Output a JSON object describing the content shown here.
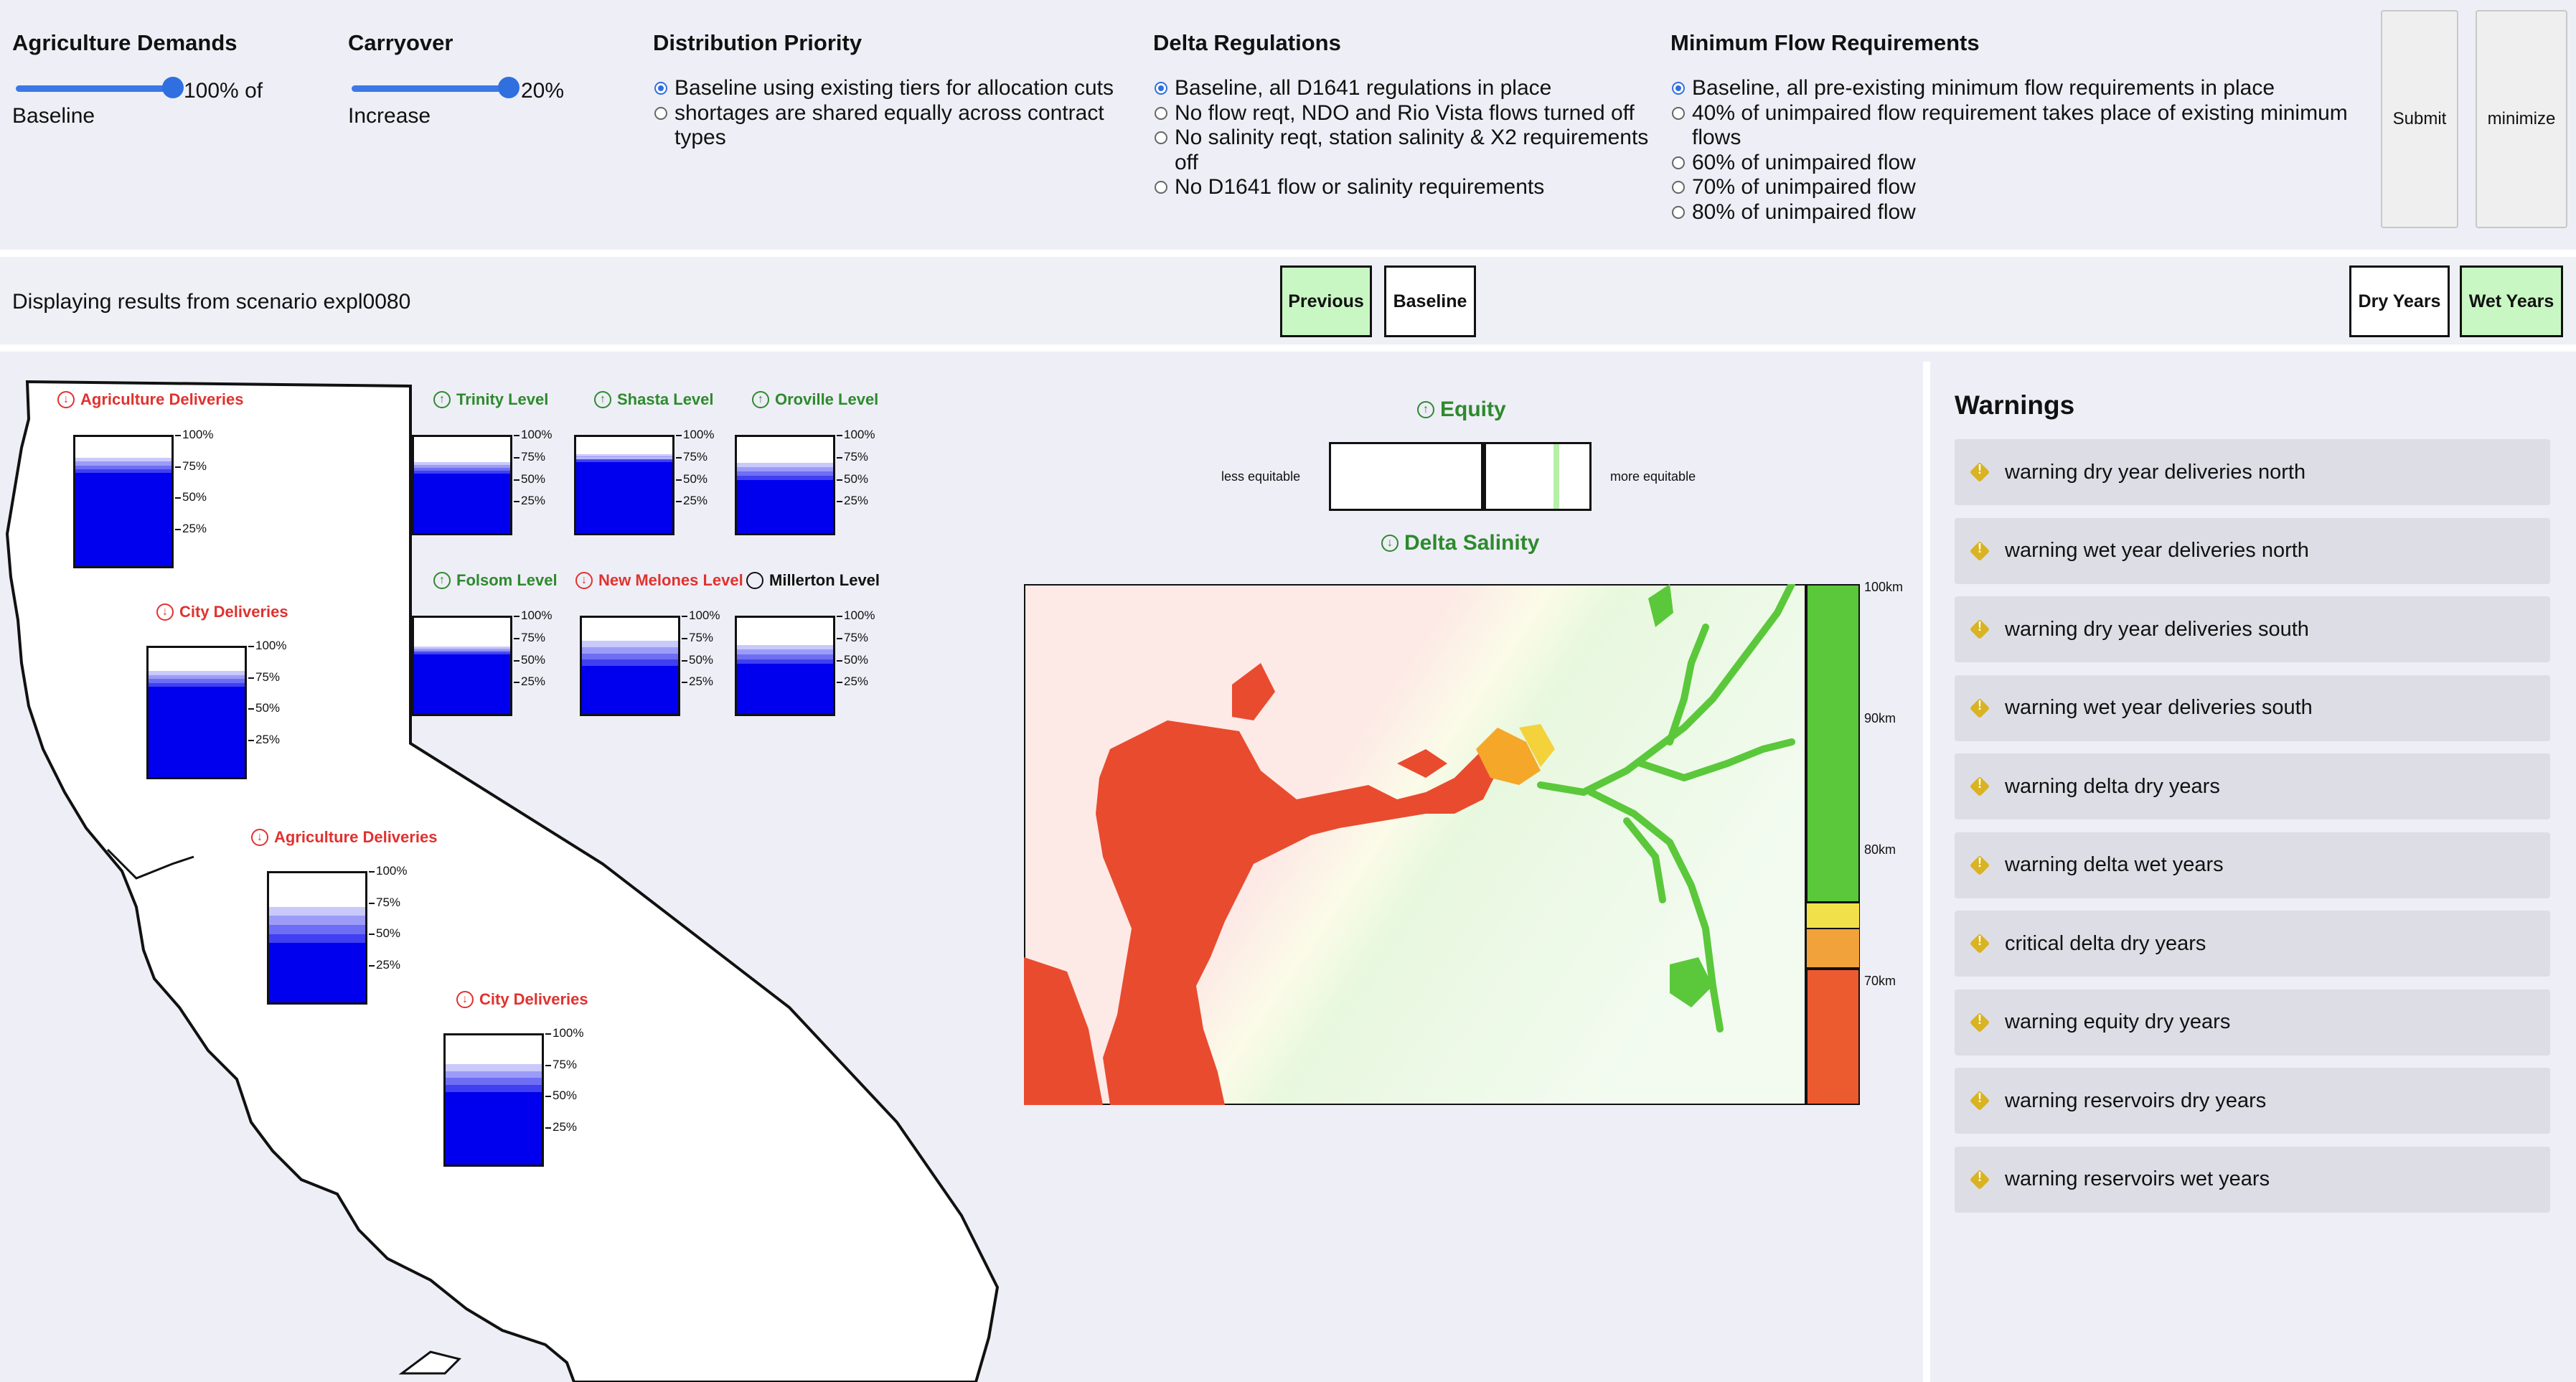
{
  "controls": {
    "agriculture": {
      "title": "Agriculture Demands",
      "value_label": "100% of",
      "sub_label": "Baseline",
      "level": 1.0
    },
    "carryover": {
      "title": "Carryover",
      "value_label": "20%",
      "sub_label": "Increase",
      "level": 1.0
    },
    "distribution": {
      "title": "Distribution Priority",
      "options": [
        {
          "label": "Baseline using existing tiers for allocation cuts",
          "selected": true
        },
        {
          "label": "shortages are shared equally across contract types",
          "selected": false
        }
      ]
    },
    "delta": {
      "title": "Delta Regulations",
      "options": [
        {
          "label": "Baseline, all D1641 regulations in place",
          "selected": true
        },
        {
          "label": "No flow reqt, NDO and Rio Vista flows turned off",
          "selected": false
        },
        {
          "label": "No salinity reqt, station salinity & X2 requirements off",
          "selected": false
        },
        {
          "label": "No D1641 flow or salinity requirements",
          "selected": false
        }
      ]
    },
    "minflow": {
      "title": "Minimum Flow Requirements",
      "options": [
        {
          "label": "Baseline, all pre-existing minimum flow requirements in place",
          "selected": true
        },
        {
          "label": "40% of unimpaired flow requirement takes place of existing minimum flows",
          "selected": false
        },
        {
          "label": "60% of unimpaired flow",
          "selected": false
        },
        {
          "label": "70% of unimpaired flow",
          "selected": false
        },
        {
          "label": "80% of unimpaired flow",
          "selected": false
        }
      ]
    },
    "submit_label": "Submit",
    "minimize_label": "minimize"
  },
  "scenario": {
    "text": "Displaying results from scenario expl0080",
    "previous_label": "Previous",
    "baseline_label": "Baseline",
    "dry_label": "Dry Years",
    "wet_label": "Wet Years"
  },
  "ticks": [
    "100%",
    "75%",
    "50%",
    "25%"
  ],
  "gauges": [
    {
      "title": "Agriculture Deliveries",
      "tone": "red",
      "arrow": "down",
      "fill": 0.72,
      "band": 0.12
    },
    {
      "title": "City Deliveries",
      "tone": "red",
      "arrow": "down",
      "fill": 0.7,
      "band": 0.12
    },
    {
      "title": "Agriculture Deliveries",
      "tone": "red",
      "arrow": "down",
      "fill": 0.46,
      "band": 0.28
    },
    {
      "title": "City Deliveries",
      "tone": "red",
      "arrow": "down",
      "fill": 0.56,
      "band": 0.22
    },
    {
      "title": "Trinity Level",
      "tone": "green",
      "arrow": "up",
      "fill": 0.62,
      "band": 0.12
    },
    {
      "title": "Shasta Level",
      "tone": "green",
      "arrow": "up",
      "fill": 0.74,
      "band": 0.08
    },
    {
      "title": "Oroville Level",
      "tone": "green",
      "arrow": "up",
      "fill": 0.55,
      "band": 0.18
    },
    {
      "title": "Folsom Level",
      "tone": "green",
      "arrow": "up",
      "fill": 0.62,
      "band": 0.08
    },
    {
      "title": "New Melones Level",
      "tone": "red",
      "arrow": "down",
      "fill": 0.5,
      "band": 0.26
    },
    {
      "title": "Millerton Level",
      "tone": "black",
      "arrow": "none",
      "fill": 0.52,
      "band": 0.2
    }
  ],
  "equity": {
    "title": "Equity",
    "left_label": "less equitable",
    "right_label": "more equitable",
    "marker": 0.58,
    "highlight": 0.86
  },
  "salinity": {
    "title": "Delta Salinity",
    "scale_labels": [
      "100km",
      "90km",
      "80km",
      "70km"
    ]
  },
  "warnings": {
    "title": "Warnings",
    "items": [
      "warning dry year deliveries north",
      "warning wet year deliveries north",
      "warning dry year deliveries south",
      "warning wet year deliveries south",
      "warning delta dry years",
      "warning delta wet years",
      "critical delta dry years",
      "warning equity dry years",
      "warning reservoirs dry years",
      "warning reservoirs wet years"
    ]
  }
}
